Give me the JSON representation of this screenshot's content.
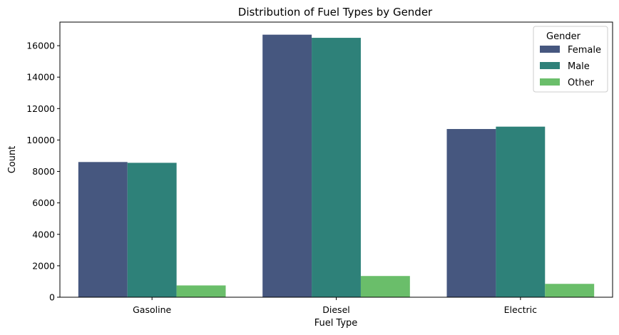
{
  "chart_data": {
    "type": "bar",
    "title": "Distribution of Fuel Types by Gender",
    "xlabel": "Fuel Type",
    "ylabel": "Count",
    "categories": [
      "Gasoline",
      "Diesel",
      "Electric"
    ],
    "series": [
      {
        "name": "Female",
        "color": "#46577f",
        "values": [
          8600,
          16700,
          10700
        ]
      },
      {
        "name": "Male",
        "color": "#2e8179",
        "values": [
          8550,
          16500,
          10850
        ]
      },
      {
        "name": "Other",
        "color": "#6abe6a",
        "values": [
          750,
          1350,
          850
        ]
      }
    ],
    "ylim": [
      0,
      17500
    ],
    "yticks": [
      0,
      2000,
      4000,
      6000,
      8000,
      10000,
      12000,
      14000,
      16000
    ],
    "legend": {
      "title": "Gender",
      "position": "top-right"
    },
    "grid": false
  }
}
